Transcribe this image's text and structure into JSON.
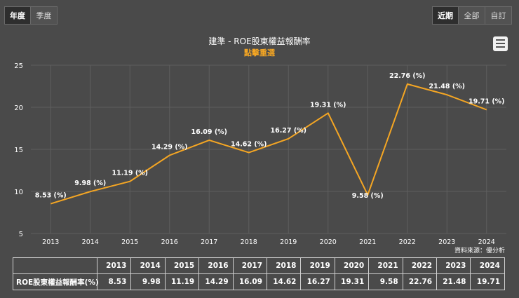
{
  "period_tabs": [
    {
      "label": "年度",
      "active": true
    },
    {
      "label": "季度",
      "active": false
    }
  ],
  "range_tabs": [
    {
      "label": "近期",
      "active": true
    },
    {
      "label": "全部",
      "active": false
    },
    {
      "label": "自訂",
      "active": false
    }
  ],
  "menu_icon": "hamburger-menu-icon",
  "source_text": "資料來源：優分析",
  "colors": {
    "line": "#f5a623",
    "subtitle": "#f5a623",
    "background": "#4a4a4a",
    "grid": "#5e5e5e"
  },
  "chart_data": {
    "type": "line",
    "title": "建準 - ROE股東權益報酬率",
    "subtitle": "點擊重選",
    "categories": [
      "2013",
      "2014",
      "2015",
      "2016",
      "2017",
      "2018",
      "2019",
      "2020",
      "2021",
      "2022",
      "2023",
      "2024"
    ],
    "series": [
      {
        "name": "ROE股東權益報酬率(%)",
        "values": [
          8.53,
          9.98,
          11.19,
          14.29,
          16.09,
          14.62,
          16.27,
          19.31,
          9.58,
          22.76,
          21.48,
          19.71
        ]
      }
    ],
    "data_labels": [
      "8.53 (%)",
      "9.98 (%)",
      "11.19 (%)",
      "14.29 (%)",
      "16.09 (%)",
      "14.62 (%)",
      "16.27 (%)",
      "19.31 (%)",
      "9.58 (%)",
      "22.76 (%)",
      "21.48 (%)",
      "19.71 (%)"
    ],
    "y_ticks": [
      "5",
      "10",
      "15",
      "20",
      "25"
    ],
    "ylim": [
      5,
      25
    ],
    "grid": true
  },
  "table": {
    "row_label": "ROE股東權益報酬率(%)",
    "years": [
      "2013",
      "2014",
      "2015",
      "2016",
      "2017",
      "2018",
      "2019",
      "2020",
      "2021",
      "2022",
      "2023",
      "2024"
    ],
    "values": [
      "8.53",
      "9.98",
      "11.19",
      "14.29",
      "16.09",
      "14.62",
      "16.27",
      "19.31",
      "9.58",
      "22.76",
      "21.48",
      "19.71"
    ]
  }
}
